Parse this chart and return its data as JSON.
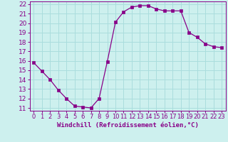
{
  "x": [
    0,
    1,
    2,
    3,
    4,
    5,
    6,
    7,
    8,
    9,
    10,
    11,
    12,
    13,
    14,
    15,
    16,
    17,
    18,
    19,
    20,
    21,
    22,
    23
  ],
  "y": [
    15.8,
    14.9,
    14.0,
    12.9,
    12.0,
    11.2,
    11.1,
    11.0,
    12.0,
    15.9,
    20.1,
    21.2,
    21.7,
    21.85,
    21.85,
    21.5,
    21.3,
    21.3,
    21.3,
    19.0,
    18.5,
    17.8,
    17.5,
    17.4
  ],
  "line_color": "#880088",
  "marker_color": "#880088",
  "bg_color": "#cdf0ee",
  "grid_color": "#aadddd",
  "xlabel": "Windchill (Refroidissement éolien,°C)",
  "ylim": [
    11,
    22
  ],
  "xlim": [
    -0.5,
    23.5
  ],
  "yticks": [
    11,
    12,
    13,
    14,
    15,
    16,
    17,
    18,
    19,
    20,
    21,
    22
  ],
  "xticks": [
    0,
    1,
    2,
    3,
    4,
    5,
    6,
    7,
    8,
    9,
    10,
    11,
    12,
    13,
    14,
    15,
    16,
    17,
    18,
    19,
    20,
    21,
    22,
    23
  ],
  "tick_color": "#880088",
  "xlabel_color": "#880088",
  "xlabel_fontsize": 6.5,
  "tick_fontsize": 6.0,
  "ytick_fontsize": 6.5
}
